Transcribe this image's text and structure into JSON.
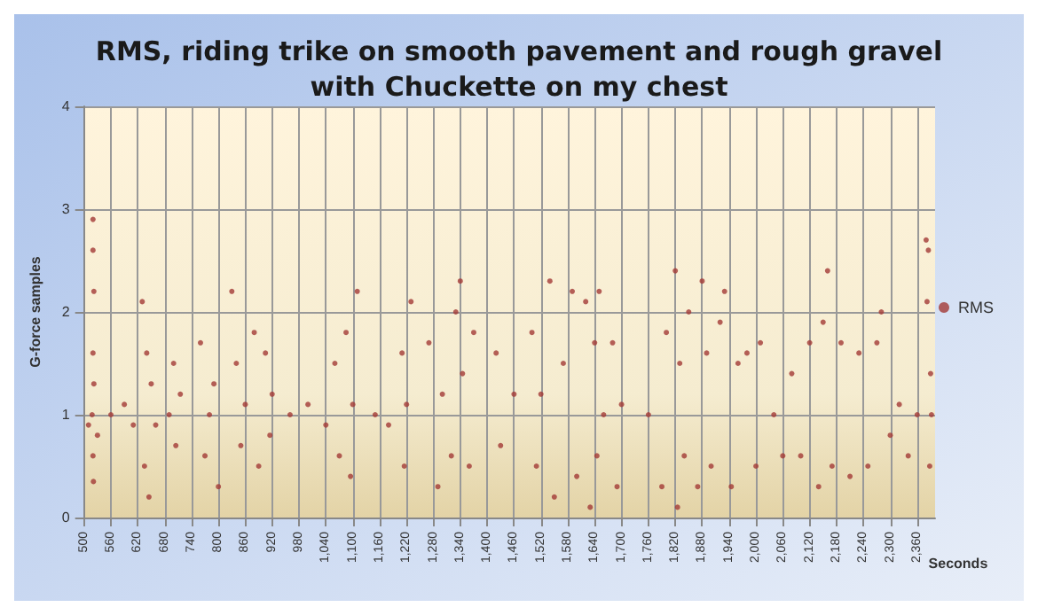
{
  "chart_data": {
    "type": "scatter",
    "title": "RMS, riding trike on smooth pavement and rough gravel\nwith Chuckette on my chest",
    "xlabel": "Seconds",
    "ylabel": "G-force samples",
    "xlim": [
      500,
      2400
    ],
    "xticks": [
      500,
      560,
      620,
      680,
      740,
      800,
      860,
      920,
      980,
      {
        "value": 1040,
        "label": "1,040"
      },
      {
        "value": 1100,
        "label": "1,100"
      },
      {
        "value": 1160,
        "label": "1,160"
      },
      {
        "value": 1220,
        "label": "1,220"
      },
      {
        "value": 1280,
        "label": "1,280"
      },
      {
        "value": 1340,
        "label": "1,340"
      },
      {
        "value": 1400,
        "label": "1,400"
      },
      {
        "value": 1460,
        "label": "1,460"
      },
      {
        "value": 1520,
        "label": "1,520"
      },
      {
        "value": 1580,
        "label": "1,580"
      },
      {
        "value": 1640,
        "label": "1,640"
      },
      {
        "value": 1700,
        "label": "1,700"
      },
      {
        "value": 1760,
        "label": "1,760"
      },
      {
        "value": 1820,
        "label": "1,820"
      },
      {
        "value": 1880,
        "label": "1,880"
      },
      {
        "value": 1940,
        "label": "1,940"
      },
      {
        "value": 2000,
        "label": "2,000"
      },
      {
        "value": 2060,
        "label": "2,060"
      },
      {
        "value": 2120,
        "label": "2,120"
      },
      {
        "value": 2180,
        "label": "2,180"
      },
      {
        "value": 2240,
        "label": "2,240"
      },
      {
        "value": 2300,
        "label": "2,300"
      },
      {
        "value": 2360,
        "label": "2,360"
      }
    ],
    "ylim": [
      0,
      4
    ],
    "yticks": [
      0,
      1,
      2,
      3,
      4
    ],
    "grid": true,
    "legend": "right",
    "marker": "circle",
    "series": [
      {
        "name": "RMS",
        "color": "#a33a36",
        "x": [
          510,
          520,
          520,
          522,
          520,
          522,
          520,
          521,
          518,
          530,
          560,
          590,
          610,
          630,
          640,
          635,
          650,
          660,
          645,
          700,
          705,
          715,
          690,
          760,
          770,
          790,
          800,
          780,
          830,
          840,
          850,
          860,
          880,
          890,
          905,
          915,
          920,
          960,
          1000,
          1040,
          1060,
          1070,
          1085,
          1095,
          1100,
          1110,
          1150,
          1180,
          1210,
          1215,
          1220,
          1230,
          1270,
          1290,
          1300,
          1320,
          1330,
          1340,
          1345,
          1360,
          1370,
          1420,
          1430,
          1460,
          1500,
          1510,
          1520,
          1540,
          1550,
          1570,
          1590,
          1600,
          1620,
          1630,
          1640,
          1645,
          1650,
          1660,
          1680,
          1690,
          1700,
          1760,
          1790,
          1800,
          1820,
          1825,
          1830,
          1840,
          1850,
          1870,
          1880,
          1890,
          1900,
          1920,
          1930,
          1945,
          1960,
          1980,
          2000,
          2010,
          2040,
          2060,
          2080,
          2100,
          2120,
          2140,
          2150,
          2160,
          2170,
          2190,
          2210,
          2230,
          2250,
          2270,
          2280,
          2300,
          2320,
          2340,
          2360,
          2380,
          2385,
          2382,
          2390,
          2388,
          2392
        ],
        "values": [
          0.9,
          2.9,
          2.6,
          2.2,
          1.6,
          1.3,
          0.6,
          0.35,
          1.0,
          0.8,
          1.0,
          1.1,
          0.9,
          2.1,
          1.6,
          0.5,
          1.3,
          0.9,
          0.2,
          1.5,
          0.7,
          1.2,
          1.0,
          1.7,
          0.6,
          1.3,
          0.3,
          1.0,
          2.2,
          1.5,
          0.7,
          1.1,
          1.8,
          0.5,
          1.6,
          0.8,
          1.2,
          1.0,
          1.1,
          0.9,
          1.5,
          0.6,
          1.8,
          0.4,
          1.1,
          2.2,
          1.0,
          0.9,
          1.6,
          0.5,
          1.1,
          2.1,
          1.7,
          0.3,
          1.2,
          0.6,
          2.0,
          2.3,
          1.4,
          0.5,
          1.8,
          1.6,
          0.7,
          1.2,
          1.8,
          0.5,
          1.2,
          2.3,
          0.2,
          1.5,
          2.2,
          0.4,
          2.1,
          0.1,
          1.7,
          0.6,
          2.2,
          1.0,
          1.7,
          0.3,
          1.1,
          1.0,
          0.3,
          1.8,
          2.4,
          0.1,
          1.5,
          0.6,
          2.0,
          0.3,
          2.3,
          1.6,
          0.5,
          1.9,
          2.2,
          0.3,
          1.5,
          1.6,
          0.5,
          1.7,
          1.0,
          0.6,
          1.4,
          0.6,
          1.7,
          0.3,
          1.9,
          2.4,
          0.5,
          1.7,
          0.4,
          1.6,
          0.5,
          1.7,
          2.0,
          0.8,
          1.1,
          0.6,
          1.0,
          2.7,
          2.6,
          2.1,
          1.4,
          0.5,
          1.0
        ]
      }
    ]
  }
}
